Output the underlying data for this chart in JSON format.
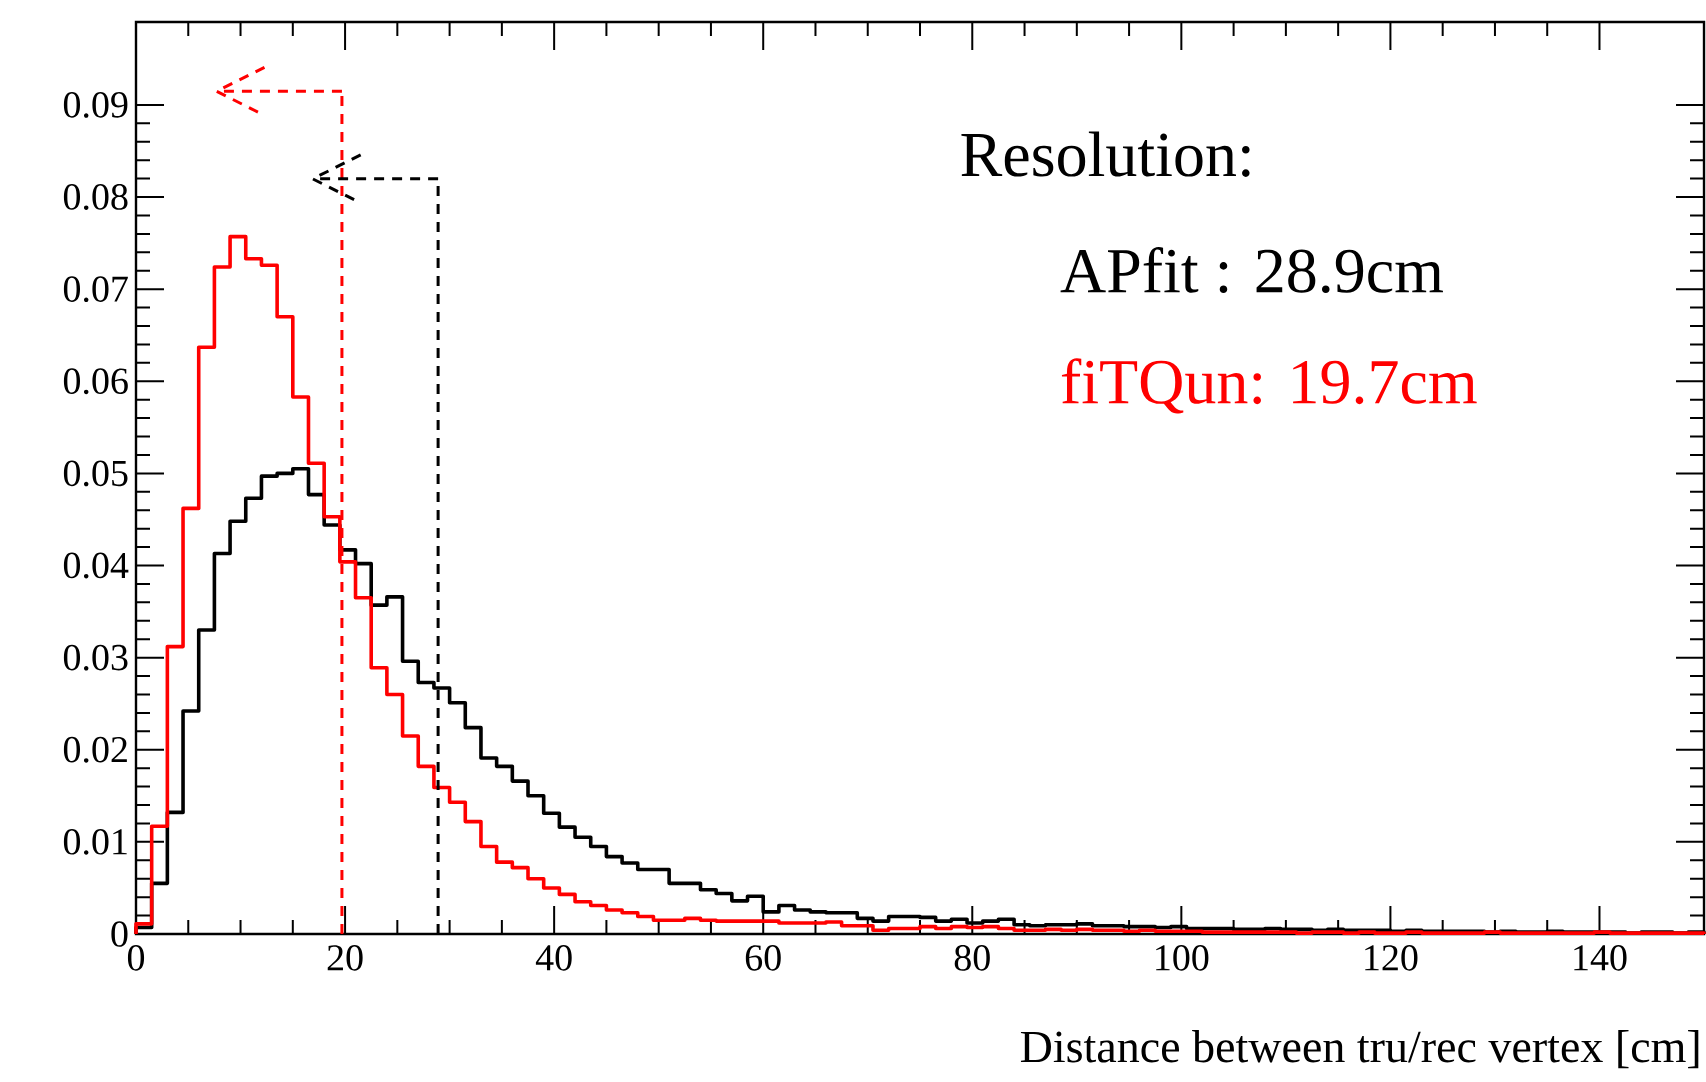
{
  "chart_data": {
    "type": "histogram",
    "xlabel": "Distance between tru/rec vertex [cm]",
    "legend_title": "Resolution:",
    "bins": [
      0,
      1.5,
      3,
      4.5,
      6,
      7.5,
      9,
      10.5,
      12,
      13.5,
      15,
      16.5,
      18,
      19.5,
      21,
      22.5,
      24,
      25.5,
      27,
      28.5,
      30,
      31.5,
      33,
      34.5,
      36,
      37.5,
      39,
      40.5,
      42,
      43.5,
      45,
      46.5,
      48,
      49.5,
      51,
      52.5,
      54,
      55.5,
      57,
      58.5,
      60,
      61.5,
      63,
      64.5,
      66,
      67.5,
      69,
      70.5,
      72,
      73.5,
      75,
      76.5,
      78,
      79.5,
      81,
      82.5,
      84,
      85.5,
      87,
      88.5,
      90,
      91.5,
      93,
      94.5,
      96,
      97.5,
      99,
      100.5,
      102,
      103.5,
      105,
      106.5,
      108,
      109.5,
      111,
      112.5,
      114,
      115.5,
      117,
      118.5,
      120,
      121.5,
      123,
      124.5,
      126,
      127.5,
      129,
      130.5,
      132,
      133.5,
      135,
      136.5,
      138,
      139.5,
      141,
      142.5,
      144,
      145.5,
      147,
      148.5,
      150
    ],
    "series": [
      {
        "name": "APfit : 28.9cm",
        "color": "#000000",
        "values": [
          0.0007,
          0.0055,
          0.0132,
          0.0242,
          0.033,
          0.0413,
          0.0448,
          0.0473,
          0.0497,
          0.05,
          0.0505,
          0.0477,
          0.0444,
          0.0417,
          0.0402,
          0.0357,
          0.0366,
          0.0296,
          0.0273,
          0.0267,
          0.0251,
          0.0224,
          0.0191,
          0.0182,
          0.0166,
          0.015,
          0.0131,
          0.0116,
          0.0105,
          0.0095,
          0.0084,
          0.0077,
          0.007,
          0.007,
          0.0055,
          0.0055,
          0.0048,
          0.0044,
          0.0036,
          0.0041,
          0.0024,
          0.0031,
          0.0026,
          0.0024,
          0.0023,
          0.0023,
          0.0017,
          0.0014,
          0.0019,
          0.0019,
          0.0018,
          0.0014,
          0.0016,
          0.0012,
          0.0014,
          0.0016,
          0.001,
          0.0009,
          0.001,
          0.001,
          0.0011,
          0.0009,
          0.0009,
          0.0008,
          0.0008,
          0.0007,
          0.0008,
          0.0006,
          0.0006,
          0.0006,
          0.0005,
          0.0005,
          0.0006,
          0.0005,
          0.0005,
          0.0004,
          0.0005,
          0.0004,
          0.0004,
          0.0004,
          0.0003,
          0.0004,
          0.0003,
          0.0003,
          0.0003,
          0.0003,
          0.0002,
          0.0003,
          0.0002,
          0.0002,
          0.0003,
          0.0002,
          0.0002,
          0.0002,
          0.0002,
          0.0001,
          0.0002,
          0.0002,
          0.0001,
          0.0002
        ]
      },
      {
        "name": "fiTQun: 19.7cm",
        "color": "#ff0000",
        "values": [
          0.0011,
          0.0117,
          0.0312,
          0.0462,
          0.0637,
          0.0724,
          0.0757,
          0.0733,
          0.0726,
          0.067,
          0.0583,
          0.0511,
          0.0453,
          0.0404,
          0.0365,
          0.0289,
          0.026,
          0.0215,
          0.0182,
          0.0159,
          0.0143,
          0.0122,
          0.0095,
          0.0078,
          0.0072,
          0.006,
          0.005,
          0.0043,
          0.0035,
          0.0031,
          0.0026,
          0.0023,
          0.0019,
          0.0015,
          0.0015,
          0.0017,
          0.0015,
          0.0014,
          0.0014,
          0.0014,
          0.0014,
          0.0012,
          0.0012,
          0.0012,
          0.0013,
          0.0009,
          0.0009,
          0.0004,
          0.0006,
          0.0006,
          0.0008,
          0.0006,
          0.0008,
          0.0007,
          0.0008,
          0.0006,
          0.0004,
          0.0004,
          0.0005,
          0.0004,
          0.0005,
          0.0004,
          0.0004,
          0.0003,
          0.0004,
          0.0003,
          0.0003,
          0.0003,
          0.0002,
          0.0002,
          0.0002,
          0.0002,
          0.0002,
          0.0002,
          0.0001,
          0.0002,
          0.0002,
          0.0001,
          0.0002,
          0.0001,
          0.0001,
          0.0002,
          0.0001,
          0.0001,
          0.0001,
          0.0001,
          0.0002,
          0.0001,
          0.0001,
          0.0001,
          0.0001,
          0.0001,
          0.0001,
          0.0002,
          0.0001,
          0.0001,
          0.0001,
          0.0001,
          0.0001,
          0.0001
        ]
      }
    ],
    "ref_lines": [
      {
        "axis": "x",
        "value": 19.7,
        "color": "#ff0000",
        "line_style": "dashed"
      },
      {
        "axis": "x",
        "value": 28.9,
        "color": "#000000",
        "line_style": "dashed"
      }
    ],
    "xlim": [
      0,
      150
    ],
    "ylim": [
      0,
      0.099
    ],
    "xticks": [
      0,
      20,
      40,
      60,
      80,
      100,
      120,
      140
    ],
    "yticks": [
      0,
      0.01,
      0.02,
      0.03,
      0.04,
      0.05,
      0.06,
      0.07,
      0.08,
      0.09
    ],
    "legend": "top right"
  }
}
